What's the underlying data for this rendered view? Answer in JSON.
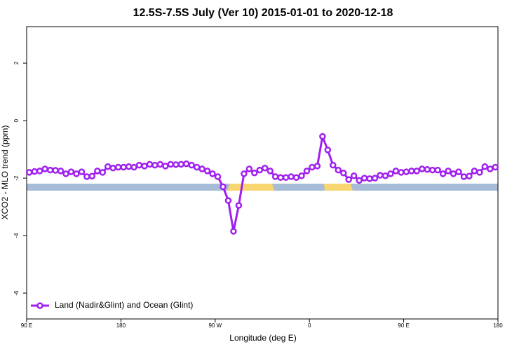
{
  "chart_data": {
    "type": "line",
    "title": "12.5S-7.5S July (Ver 10)   2015-01-01 to 2020-12-18",
    "x_label": "Longitude (deg E)",
    "y_label": "XCO2 - MLO trend (ppm)",
    "x": [
      92.5,
      97.5,
      102.5,
      107.5,
      112.5,
      117.5,
      122.5,
      127.5,
      132.5,
      137.5,
      142.5,
      147.5,
      152.5,
      157.5,
      162.5,
      167.5,
      172.5,
      177.5,
      182.5,
      187.5,
      192.5,
      197.5,
      202.5,
      207.5,
      212.5,
      217.5,
      222.5,
      227.5,
      232.5,
      237.5,
      242.5,
      247.5,
      252.5,
      257.5,
      262.5,
      267.5,
      272.5,
      277.5,
      282.5,
      287.5,
      292.5,
      297.5,
      302.5,
      307.5,
      312.5,
      317.5,
      322.5,
      327.5,
      332.5,
      337.5,
      342.5,
      347.5,
      352.5,
      357.5,
      362.5,
      367.5,
      372.5,
      377.5,
      382.5,
      387.5,
      392.5,
      397.5,
      402.5,
      407.5,
      412.5,
      417.5,
      422.5,
      427.5,
      432.5,
      437.5,
      442.5,
      447.5,
      452.5,
      457.5,
      462.5,
      467.5,
      472.5,
      477.5,
      482.5,
      487.5,
      492.5,
      497.5,
      502.5,
      507.5,
      512.5,
      517.5,
      522.5,
      527.5,
      532.5,
      537.5
    ],
    "series": [
      {
        "name": "Land (Nadir&Glint) and Ocean (Glint)",
        "color": "#a020f0",
        "values": [
          -1.8,
          -1.77,
          -1.75,
          -1.68,
          -1.72,
          -1.73,
          -1.75,
          -1.85,
          -1.78,
          -1.85,
          -1.78,
          -1.95,
          -1.93,
          -1.75,
          -1.8,
          -1.6,
          -1.65,
          -1.62,
          -1.62,
          -1.6,
          -1.62,
          -1.55,
          -1.58,
          -1.52,
          -1.55,
          -1.52,
          -1.58,
          -1.52,
          -1.53,
          -1.52,
          -1.5,
          -1.55,
          -1.62,
          -1.68,
          -1.75,
          -1.85,
          -1.95,
          -2.3,
          -2.78,
          -3.85,
          -2.95,
          -1.85,
          -1.68,
          -1.82,
          -1.72,
          -1.65,
          -1.75,
          -1.95,
          -1.98,
          -1.98,
          -1.95,
          -1.98,
          -1.92,
          -1.75,
          -1.62,
          -1.58,
          -0.55,
          -1.02,
          -1.55,
          -1.72,
          -1.82,
          -2.05,
          -1.92,
          -2.08,
          -2.0,
          -2.02,
          -2.0,
          -1.9,
          -1.92,
          -1.85,
          -1.75,
          -1.8,
          -1.78,
          -1.75,
          -1.75,
          -1.68,
          -1.7,
          -1.72,
          -1.72,
          -1.85,
          -1.75,
          -1.85,
          -1.78,
          -1.95,
          -1.93,
          -1.75,
          -1.8,
          -1.6,
          -1.68,
          -1.62
        ]
      }
    ],
    "xlim": [
      90,
      540
    ],
    "xticks": [
      {
        "value": 90,
        "label": "90 E"
      },
      180,
      {
        "value": 270,
        "label": "90 W"
      },
      {
        "value": 360,
        "label": "0"
      },
      {
        "value": 450,
        "label": "90 E"
      },
      {
        "value": 540,
        "label": "180"
      }
    ],
    "ylim": [
      -6.9,
      3.27
    ],
    "yticks": [
      -6,
      -4,
      -2,
      0,
      2
    ],
    "legend": "bottom-left"
  }
}
